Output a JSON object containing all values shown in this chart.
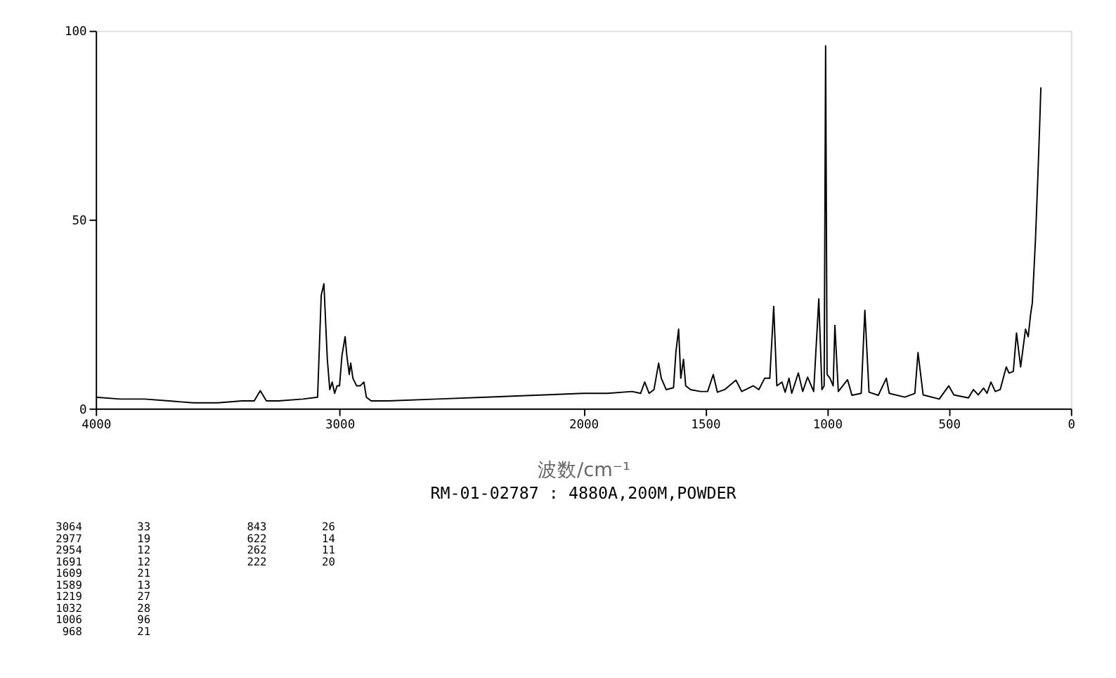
{
  "chart_data": {
    "type": "line",
    "xlabel": "波数/cm⁻¹",
    "subtitle": "RM-01-02787 : 4880A,200M,POWDER",
    "x": [
      4000,
      3900,
      3800,
      3700,
      3600,
      3500,
      3400,
      3350,
      3325,
      3300,
      3250,
      3150,
      3090,
      3075,
      3064,
      3055,
      3050,
      3040,
      3030,
      3020,
      3010,
      3000,
      2990,
      2977,
      2970,
      2960,
      2954,
      2945,
      2930,
      2915,
      2900,
      2890,
      2870,
      2800,
      2600,
      2400,
      2200,
      2000,
      1900,
      1800,
      1765,
      1748,
      1730,
      1710,
      1691,
      1680,
      1660,
      1630,
      1620,
      1609,
      1600,
      1589,
      1580,
      1560,
      1520,
      1490,
      1467,
      1450,
      1420,
      1374,
      1350,
      1303,
      1280,
      1256,
      1235,
      1219,
      1206,
      1185,
      1172,
      1156,
      1145,
      1118,
      1100,
      1080,
      1055,
      1034,
      1021,
      1012,
      1006,
      1000,
      988,
      975,
      968,
      954,
      916,
      898,
      860,
      845,
      828,
      790,
      757,
      745,
      681,
      640,
      627,
      606,
      540,
      501,
      480,
      420,
      400,
      380,
      358,
      344,
      328,
      310,
      290,
      265,
      254,
      236,
      223,
      206,
      186,
      175,
      165,
      158,
      145,
      135,
      128,
      123
    ],
    "series": [
      {
        "color": "#000000",
        "values": [
          3,
          2.5,
          2.5,
          2,
          1.5,
          1.5,
          2,
          2,
          4.7,
          2,
          2,
          2.5,
          3,
          30,
          33,
          20,
          13,
          5,
          7,
          4,
          6,
          6,
          14,
          19,
          14,
          9,
          12,
          8,
          6,
          6,
          7,
          3,
          2,
          2,
          2.5,
          3,
          3.5,
          4,
          4,
          4.5,
          4,
          7,
          4,
          5,
          12,
          8,
          5,
          5.5,
          15,
          21,
          8,
          13,
          6,
          5,
          4.5,
          4.5,
          9,
          4.3,
          5,
          7.5,
          4.5,
          6,
          5,
          8,
          8,
          27,
          6,
          7,
          4.3,
          8,
          4,
          9.4,
          4.5,
          8.3,
          4.5,
          29,
          5,
          6,
          96,
          9,
          8,
          6,
          22,
          4.5,
          7.6,
          3.5,
          4,
          26,
          4.3,
          3.5,
          8,
          4,
          3,
          4,
          14.8,
          3.6,
          2.5,
          6,
          3.6,
          2.8,
          5,
          3.6,
          5.4,
          4,
          7,
          4.5,
          5,
          11,
          9.4,
          9.8,
          20,
          11,
          21,
          19,
          25,
          28,
          45,
          62,
          75,
          85
        ]
      }
    ],
    "xlim": [
      4000,
      0
    ],
    "xticks": [
      4000,
      3000,
      2000,
      1500,
      1000,
      500,
      0
    ],
    "ylim": [
      0,
      100
    ],
    "yticks": [
      0,
      50,
      100
    ],
    "grid": false,
    "marker": "none",
    "line_style": "solid",
    "annotations": [
      "3064 33",
      "2977 19",
      "2954 12",
      "1691 12",
      "1609 21",
      "1589 13",
      "1219 27",
      "1032 28",
      "1006 96",
      "968 21",
      "843 26",
      "622 14",
      "262 11",
      "222 20"
    ]
  }
}
